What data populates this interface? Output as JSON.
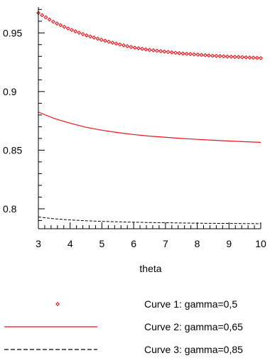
{
  "chart_data": {
    "type": "line",
    "title": "",
    "xlabel": "theta",
    "ylabel": "",
    "xlim": [
      3,
      10
    ],
    "ylim": [
      0.783,
      0.972
    ],
    "xticks": [
      3,
      4,
      5,
      6,
      7,
      8,
      9,
      10
    ],
    "xtick_labels": [
      "3",
      "4",
      "5",
      "6",
      "7",
      "8",
      "9",
      "10"
    ],
    "yticks": [
      0.8,
      0.85,
      0.9,
      0.95
    ],
    "ytick_labels": [
      "0.8",
      "0.85",
      "0.9",
      "0.95"
    ],
    "grid": false,
    "legend_position": "bottom",
    "series": [
      {
        "name": "Curve 1: gamma=0,5",
        "style": "markers",
        "color": "#e8141b",
        "x": [
          3,
          3.5,
          4,
          4.5,
          5,
          5.5,
          6,
          6.5,
          7,
          7.5,
          8,
          8.5,
          9,
          9.5,
          10
        ],
        "values": [
          0.967,
          0.959,
          0.953,
          0.948,
          0.944,
          0.9405,
          0.9375,
          0.9355,
          0.934,
          0.9325,
          0.9315,
          0.9305,
          0.9298,
          0.9292,
          0.9285
        ]
      },
      {
        "name": "Curve 2: gamma=0,65",
        "style": "solid",
        "color": "#e8141b",
        "x": [
          3,
          3.5,
          4,
          4.5,
          5,
          5.5,
          6,
          6.5,
          7,
          7.5,
          8,
          8.5,
          9,
          9.5,
          10
        ],
        "values": [
          0.8825,
          0.877,
          0.873,
          0.8695,
          0.867,
          0.865,
          0.8633,
          0.862,
          0.861,
          0.86,
          0.8592,
          0.8585,
          0.8578,
          0.8572,
          0.8567
        ]
      },
      {
        "name": "Curve 3: gamma=0,85",
        "style": "dashed",
        "color": "#000000",
        "x": [
          3,
          3.5,
          4,
          4.5,
          5,
          5.5,
          6,
          6.5,
          7,
          7.5,
          8,
          8.5,
          9,
          9.5,
          10
        ],
        "values": [
          0.793,
          0.7915,
          0.7905,
          0.7898,
          0.7893,
          0.7889,
          0.7886,
          0.7883,
          0.7881,
          0.7879,
          0.7877,
          0.7876,
          0.7875,
          0.7874,
          0.7873
        ]
      }
    ]
  }
}
